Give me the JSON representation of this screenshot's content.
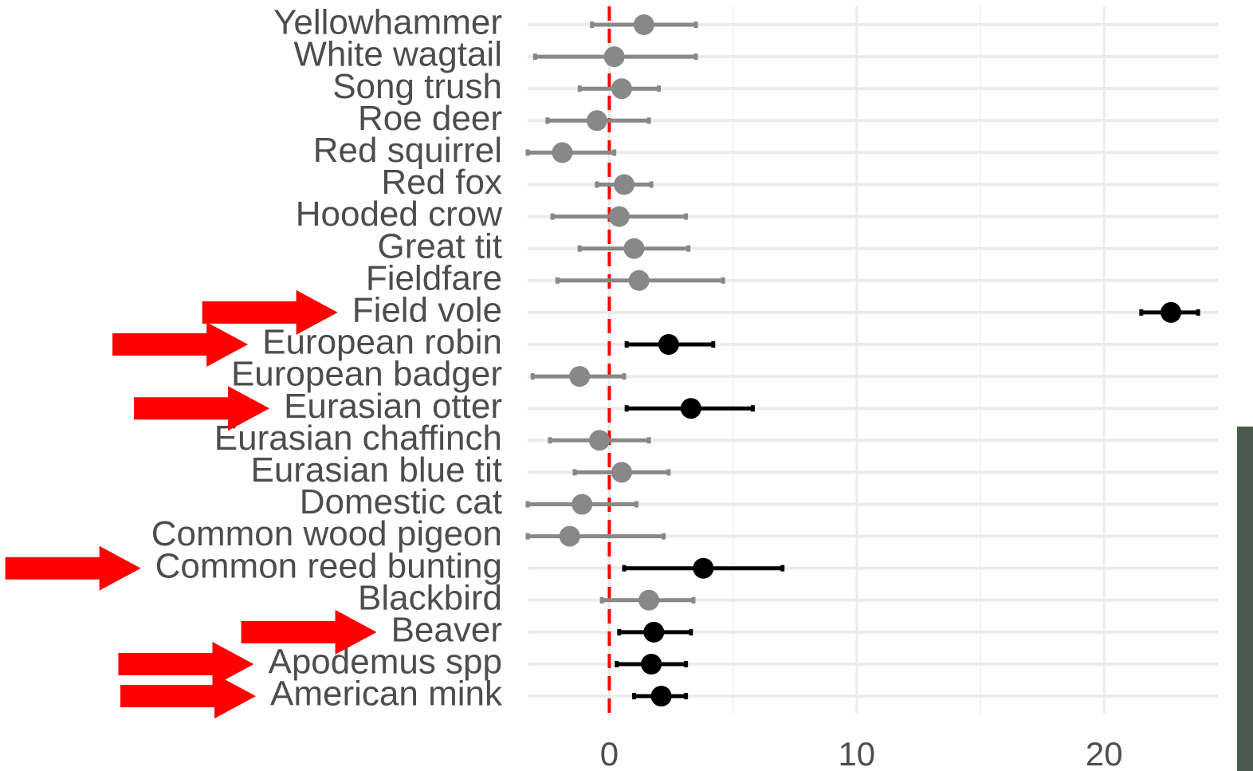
{
  "chart_data": {
    "type": "forest",
    "categories": [
      "Yellowhammer",
      "White wagtail",
      "Song trush",
      "Roe deer",
      "Red squirrel",
      "Red fox",
      "Hooded crow",
      "Great tit",
      "Fieldfare",
      "Field vole",
      "European robin",
      "European badger",
      "Eurasian otter",
      "Eurasian chaffinch",
      "Eurasian blue tit",
      "Domestic cat",
      "Common wood pigeon",
      "Common reed bunting",
      "Blackbird",
      "Beaver",
      "Apodemus spp",
      "American mink"
    ],
    "values": [
      1.4,
      0.2,
      0.5,
      -0.5,
      -1.9,
      0.6,
      0.4,
      1.0,
      1.2,
      22.7,
      2.4,
      -1.2,
      3.3,
      -0.4,
      0.5,
      -1.1,
      -1.6,
      3.8,
      1.6,
      1.8,
      1.7,
      2.1
    ],
    "lower": [
      -0.7,
      -3.0,
      -1.2,
      -2.5,
      -3.3,
      -0.5,
      -2.3,
      -1.2,
      -2.1,
      21.5,
      0.7,
      -3.1,
      0.7,
      -2.4,
      -1.4,
      -3.3,
      -3.3,
      0.6,
      -0.3,
      0.4,
      0.3,
      1.0
    ],
    "upper": [
      3.5,
      3.5,
      2.0,
      1.6,
      0.2,
      1.7,
      3.1,
      3.2,
      4.6,
      23.8,
      4.2,
      0.6,
      5.8,
      1.6,
      2.4,
      1.1,
      2.2,
      7.0,
      3.4,
      3.3,
      3.1,
      3.1
    ],
    "colors": [
      "#888888",
      "#888888",
      "#888888",
      "#888888",
      "#888888",
      "#888888",
      "#888888",
      "#888888",
      "#888888",
      "#000000",
      "#000000",
      "#888888",
      "#000000",
      "#888888",
      "#888888",
      "#888888",
      "#888888",
      "#000000",
      "#888888",
      "#000000",
      "#000000",
      "#000000"
    ],
    "xlim": [
      -3.3,
      24.6
    ],
    "xticks": [
      0,
      10,
      20
    ],
    "xminor": [
      5,
      15
    ],
    "reference_line": 0,
    "reference_color": "#ff0000",
    "arrow_rows": [
      9,
      10,
      12,
      17,
      19,
      20,
      21
    ],
    "arrow_color": "#ff0000",
    "grid": true
  }
}
